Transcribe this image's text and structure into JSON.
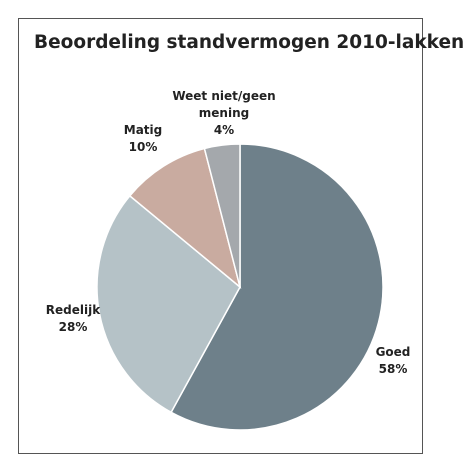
{
  "chart_data": {
    "type": "pie",
    "title": "Beoordeling standvermogen 2010-lakken",
    "categories": [
      "Goed",
      "Redelijk",
      "Matig",
      "Weet niet/geen mening"
    ],
    "values": [
      58,
      28,
      10,
      4
    ],
    "value_labels": [
      "58%",
      "28%",
      "10%",
      "4%"
    ],
    "colors": [
      "#6e808a",
      "#b5c2c7",
      "#c9aba0",
      "#a4a8ac"
    ]
  }
}
